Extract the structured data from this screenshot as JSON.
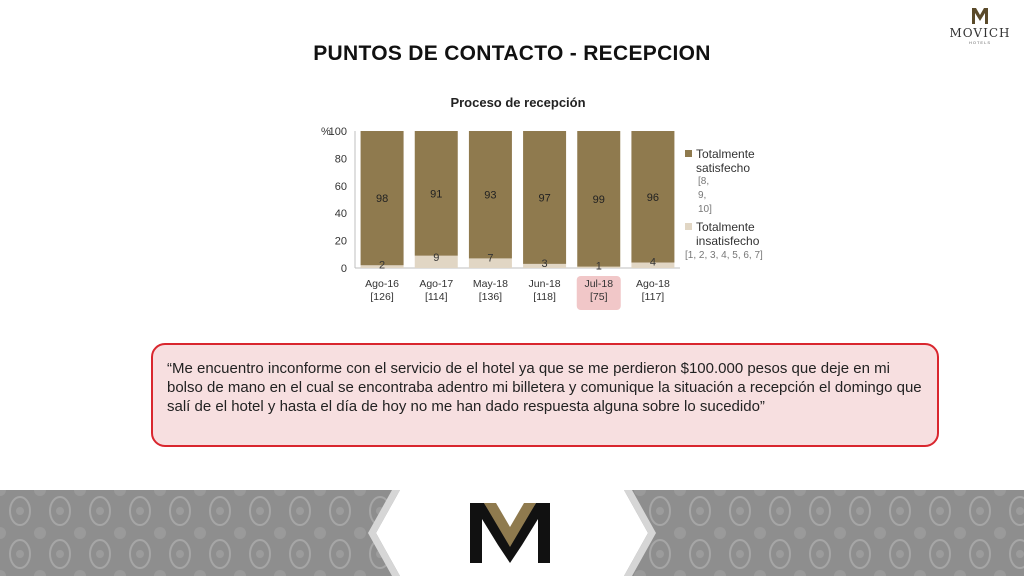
{
  "brand": {
    "name": "MOVICH",
    "subtitle": "HOTELS",
    "colors": {
      "gold": "#8f7a4e",
      "light": "#e1d6c4",
      "alert": "#d9262e",
      "highlight": "#f1c7c8"
    }
  },
  "slide": {
    "title": "PUNTOS DE CONTACTO - RECEPCION"
  },
  "chart_data": {
    "type": "bar",
    "stacked": true,
    "title": "Proceso de recepción",
    "yunit": "%",
    "ylim": [
      0,
      100
    ],
    "yticks": [
      0,
      20,
      40,
      60,
      80,
      100
    ],
    "grid": false,
    "legend_position": "right",
    "categories": [
      "Ago-16",
      "Ago-17",
      "May-18",
      "Jun-18",
      "Jul-18",
      "Ago-18"
    ],
    "category_counts": [
      "[126]",
      "[114]",
      "[136]",
      "[118]",
      "[75]",
      "[117]"
    ],
    "highlighted_category": "Jul-18",
    "series": [
      {
        "name": "Totalmente insatisfecho",
        "scale": "[1, 2, 3, 4, 5, 6, 7]",
        "color": "#e1d6c4",
        "values": [
          2,
          9,
          7,
          3,
          1,
          4
        ]
      },
      {
        "name": "Totalmente satisfecho",
        "scale": "[8, 9, 10]",
        "color": "#8f7a4e",
        "values": [
          98,
          91,
          93,
          97,
          99,
          96
        ]
      }
    ]
  },
  "quote": {
    "text": "“Me encuentro inconforme con el servicio de el hotel ya que se me perdieron $100.000 pesos que deje en mi bolso de mano en el cual se encontraba adentro mi billetera y comunique la situación a recepción el domingo que salí de el hotel y hasta el día de hoy no me han dado respuesta alguna sobre lo sucedido”"
  }
}
